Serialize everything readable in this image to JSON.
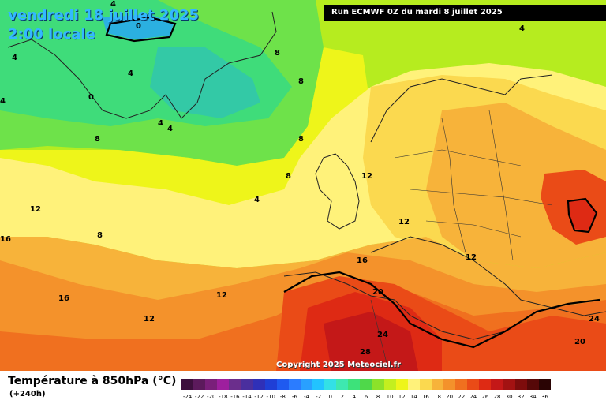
{
  "header": {
    "date_line": "vendredi 18 juillet 2025",
    "time_line": "2:00 locale",
    "run_info": "Run ECMWF 0Z du mardi 8 juillet 2025"
  },
  "copyright": "Copyright 2025 Meteociel.fr",
  "legend": {
    "title": "Température à 850hPa (°C)",
    "subtitle": "(+240h)",
    "ticks": [
      "-24",
      "-22",
      "-20",
      "-18",
      "-16",
      "-14",
      "-12",
      "-10",
      "-8",
      "-6",
      "-4",
      "-2",
      "0",
      "2",
      "4",
      "6",
      "8",
      "10",
      "12",
      "14",
      "16",
      "18",
      "20",
      "22",
      "24",
      "26",
      "28",
      "30",
      "32",
      "34",
      "36"
    ],
    "colors": [
      "#3d0f3d",
      "#5c1a5c",
      "#7a1f7a",
      "#9e1f9e",
      "#6b2e8c",
      "#4a2f9e",
      "#2f30b8",
      "#1f3fd6",
      "#1f5af0",
      "#2b7cff",
      "#29a0ff",
      "#22c3ff",
      "#33e0e6",
      "#3ee8b0",
      "#3de27a",
      "#4fd84a",
      "#8ce22a",
      "#c3ef1f",
      "#eef51a",
      "#fff27a",
      "#fbd94f",
      "#f7b33a",
      "#f4922b",
      "#f0701f",
      "#ea4b17",
      "#de2a14",
      "#c41818",
      "#a31212",
      "#7d0c0c",
      "#560808",
      "#2a0404"
    ]
  },
  "isotherm_labels": [
    "4",
    "0",
    "4",
    "8",
    "4",
    "0",
    "8",
    "4",
    "4",
    "8",
    "4",
    "4",
    "8",
    "8",
    "8",
    "4",
    "12",
    "12",
    "12",
    "16",
    "12",
    "12",
    "16",
    "20",
    "24",
    "28",
    "12",
    "16",
    "24",
    "20"
  ]
}
